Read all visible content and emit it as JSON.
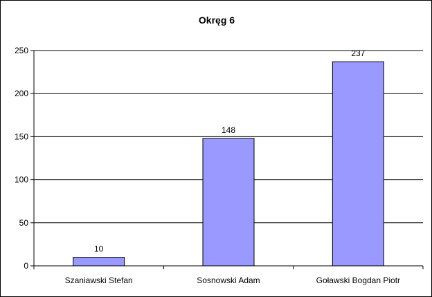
{
  "chart_data": {
    "type": "bar",
    "title": "Okręg 6",
    "categories": [
      "Szaniawski Stefan",
      "Sosnowski Adam",
      "Goławski Bogdan Piotr"
    ],
    "values": [
      10,
      148,
      237
    ],
    "data_labels": [
      "10",
      "148",
      "237"
    ],
    "y_ticks": [
      "0",
      "50",
      "100",
      "150",
      "200",
      "250"
    ],
    "ylim": [
      0,
      250
    ],
    "xlabel": "",
    "ylabel": "",
    "grid": true,
    "legend": "none",
    "colors": {
      "bar_fill": "#9999ff",
      "bar_stroke": "#000000",
      "grid": "#000000"
    }
  }
}
